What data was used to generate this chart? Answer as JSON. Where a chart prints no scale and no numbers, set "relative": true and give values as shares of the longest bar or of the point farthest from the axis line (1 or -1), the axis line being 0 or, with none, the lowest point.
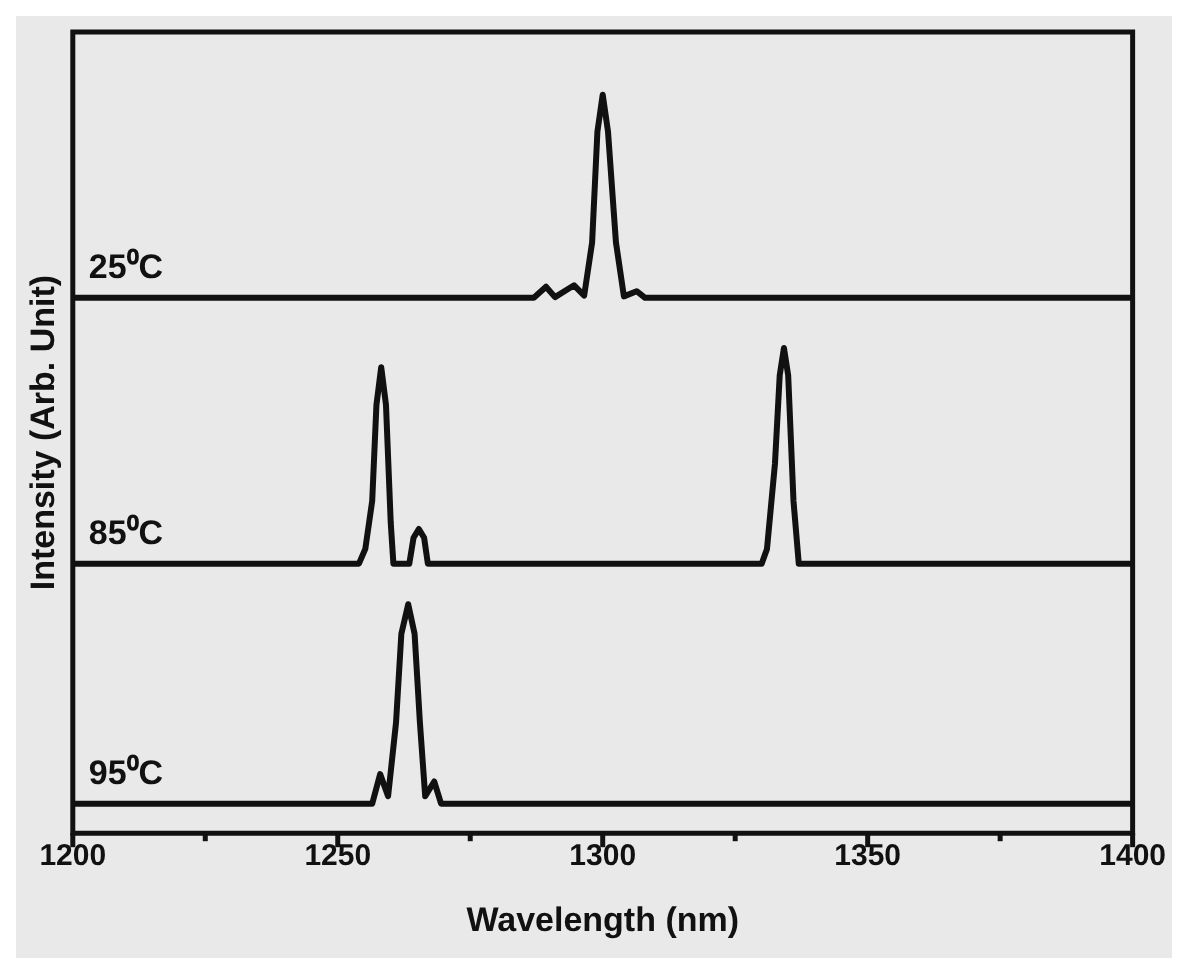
{
  "chart_data": {
    "type": "line",
    "relative": true,
    "xlabel": "Wavelength (nm)",
    "ylabel": "Intensity (Arb. Unit)",
    "xlim": [
      1200,
      1400
    ],
    "xticks": [
      1200,
      {
        "value": 1225,
        "label": null
      },
      1250,
      {
        "value": 1275,
        "label": null
      },
      1300,
      {
        "value": 1325,
        "label": null
      },
      1350,
      {
        "value": 1375,
        "label": null
      },
      1400
    ],
    "grid": false,
    "legend": false,
    "marker": "none",
    "line_style": "solid",
    "series": [
      {
        "name": "25⁰C",
        "color": "#111111",
        "x": [
          1200,
          1287,
          1289.3,
          1291,
          1294.6,
          1296.5,
          1298,
          1299,
          1300,
          1301,
          1302.5,
          1304,
          1306.4,
          1308,
          1400
        ],
        "values": [
          0.725,
          0.725,
          0.74,
          0.726,
          0.742,
          0.728,
          0.8,
          0.95,
          1.0,
          0.95,
          0.8,
          0.727,
          0.734,
          0.725,
          0.725
        ]
      },
      {
        "name": "85⁰C",
        "color": "#111111",
        "x": [
          1200,
          1254,
          1255.2,
          1256.5,
          1257.3,
          1258.2,
          1259.1,
          1260,
          1260.5,
          1263.5,
          1264.3,
          1265.3,
          1266.3,
          1267,
          1330,
          1331,
          1332.5,
          1333.4,
          1334.2,
          1335,
          1336,
          1337,
          1400
        ],
        "values": [
          0.365,
          0.365,
          0.385,
          0.45,
          0.58,
          0.631,
          0.58,
          0.42,
          0.365,
          0.365,
          0.4,
          0.412,
          0.4,
          0.365,
          0.365,
          0.385,
          0.5,
          0.62,
          0.657,
          0.62,
          0.45,
          0.365,
          0.365
        ]
      },
      {
        "name": "95⁰C",
        "color": "#111111",
        "x": [
          1200,
          1256.5,
          1258,
          1259.5,
          1261,
          1262,
          1263.3,
          1264.5,
          1265.5,
          1266.5,
          1268.2,
          1269.5,
          1400
        ],
        "values": [
          0.04,
          0.04,
          0.08,
          0.05,
          0.15,
          0.27,
          0.31,
          0.27,
          0.15,
          0.05,
          0.07,
          0.04,
          0.04
        ]
      }
    ]
  }
}
